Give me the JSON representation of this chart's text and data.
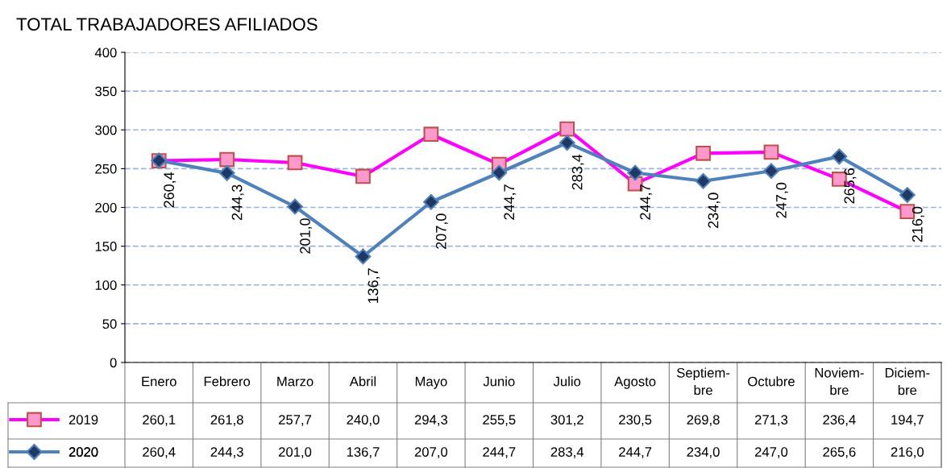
{
  "chart_data": {
    "type": "line",
    "title": "TOTAL TRABAJADORES AFILIADOS",
    "categories": [
      "Enero",
      "Febrero",
      "Marzo",
      "Abril",
      "Mayo",
      "Junio",
      "Julio",
      "Agosto",
      "Septiem-\nbre",
      "Octubre",
      "Noviem-\nbre",
      "Diciem-\nbre"
    ],
    "series": [
      {
        "name": "2019",
        "color": "#ff00ff",
        "marker": "square",
        "values": [
          260.1,
          261.8,
          257.7,
          240.0,
          294.3,
          255.5,
          301.2,
          230.5,
          269.8,
          271.3,
          236.4,
          194.7
        ],
        "value_labels": [
          "260,1",
          "261,8",
          "257,7",
          "240,0",
          "294,3",
          "255,5",
          "301,2",
          "230,5",
          "269,8",
          "271,3",
          "236,4",
          "194,7"
        ]
      },
      {
        "name": "2020",
        "color": "#4f81bd",
        "marker": "diamond",
        "values": [
          260.4,
          244.3,
          201.0,
          136.7,
          207.0,
          244.7,
          283.4,
          244.7,
          234.0,
          247.0,
          265.6,
          216.0
        ],
        "value_labels": [
          "260,4",
          "244,3",
          "201,0",
          "136,7",
          "207,0",
          "244,7",
          "283,4",
          "244,7",
          "234,0",
          "247,0",
          "265,6",
          "216,0"
        ]
      }
    ],
    "ylim": [
      0,
      400
    ],
    "yticks": [
      0,
      50,
      100,
      150,
      200,
      250,
      300,
      350,
      400
    ],
    "grid": "y",
    "line_style": "solid",
    "legend": "bottom left"
  }
}
